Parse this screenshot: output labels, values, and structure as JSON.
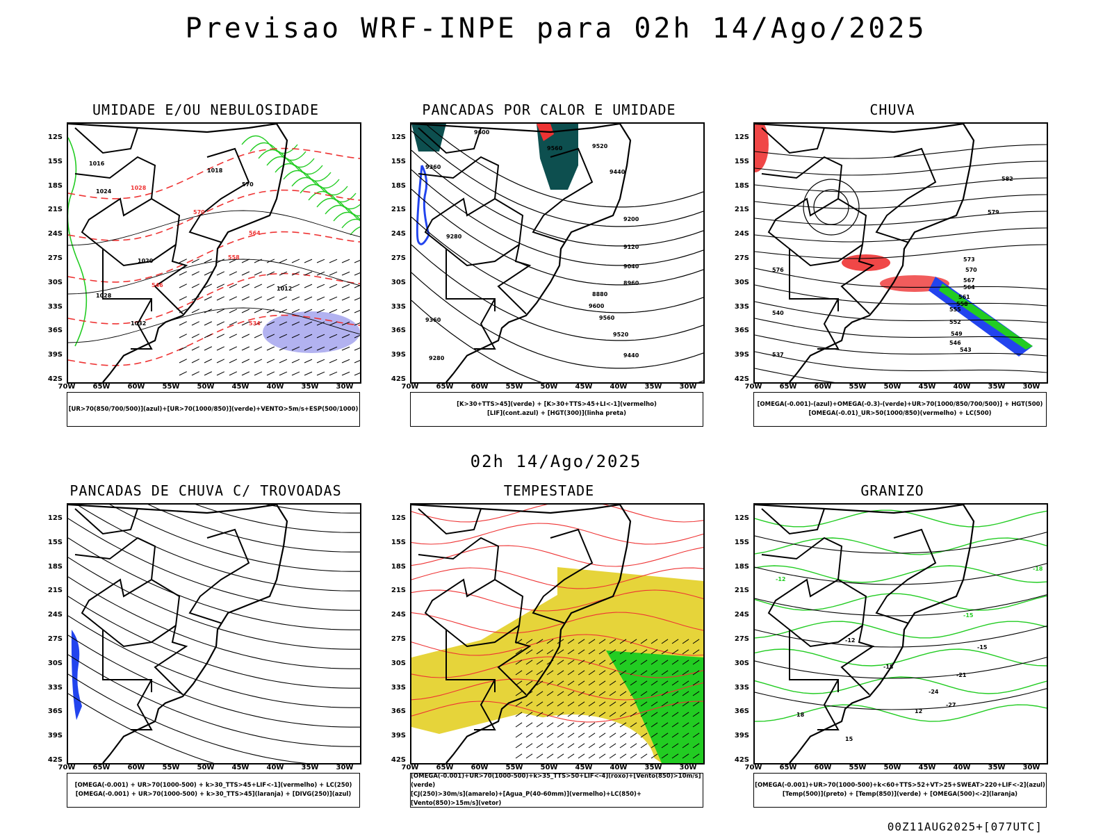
{
  "main_title": "Previsao WRF-INPE  para 02h 14/Ago/2025",
  "mid_title": "02h 14/Ago/2025",
  "footer": "00Z11AUG2025+[077UTC]",
  "lat_labels": [
    "12S",
    "15S",
    "18S",
    "21S",
    "24S",
    "27S",
    "30S",
    "33S",
    "36S",
    "39S",
    "42S"
  ],
  "lon_labels": [
    "70W",
    "65W",
    "60W",
    "55W",
    "50W",
    "45W",
    "40W",
    "35W",
    "30W"
  ],
  "colors": {
    "green": "#22cc22",
    "red": "#ee3333",
    "blue": "#2244ee",
    "lavender": "#aaaaee",
    "teal": "#0d4f4f",
    "yellow": "#e6d43a"
  },
  "panels": [
    {
      "id": "umidade",
      "title": "UMIDADE E/OU NEBULOSIDADE",
      "legend": [
        "[UR>70(850/700/500)](azul)+[UR>70(1000/850)](verde)+VENTO>5m/s+ESP(500/1000)"
      ],
      "labels": [
        "1016",
        "1018",
        "1024",
        "1020",
        "1012",
        "1032",
        "1028",
        "570",
        "564",
        "558",
        "546",
        "534",
        "552",
        "540"
      ]
    },
    {
      "id": "pancadas",
      "title": "PANCADAS POR CALOR E UMIDADE",
      "legend": [
        "[K>30+TTS>45](verde) + [K>30+TTS>45+LI<-1](vermelho)",
        "[LIF](cont.azul) + [HGT(300)](linha preta)"
      ],
      "labels": [
        "9600",
        "9560",
        "9520",
        "9440",
        "9360",
        "9280",
        "9200",
        "9120",
        "9040",
        "8960",
        "8880"
      ]
    },
    {
      "id": "chuva",
      "title": "CHUVA",
      "legend": [
        "[OMEGA(-0.001)-(azul)+OMEGA(-0.3)-(verde)+UR>70(1000/850/700/500)] + HGT(500)",
        "[OMEGA(-0.01)_UR>50(1000/850)(vermelho) + LC(500)"
      ],
      "labels": [
        "582",
        "579",
        "576",
        "573",
        "570",
        "567",
        "564",
        "561",
        "558",
        "555",
        "552",
        "549",
        "546",
        "543",
        "540",
        "537"
      ]
    },
    {
      "id": "trovoadas",
      "title": "PANCADAS DE CHUVA C/ TROVOADAS",
      "legend": [
        "[OMEGA(-0.001) + UR>70(1000-500) + k>30_TTS>45+LIF<-1](vermelho) + LC(250)",
        "[OMEGA(-0.001) + UR>70(1000-500) + k>30_TTS>45](laranja) + [DIVG(250)](azul)"
      ],
      "labels": []
    },
    {
      "id": "tempestade",
      "title": "TEMPESTADE",
      "legend": [
        "[OMEGA(-0.001)+UR>70(1000-500)+k>35_TTS>50+LIF<-4](roxo)+[Vento(850)>10m/s](verde)",
        "[CJ(250)>30m/s](amarelo)+[Agua_P(40-60mm)](vermelho)+LC(850)+[Vento(850)>15m/s](vetor)"
      ],
      "labels": []
    },
    {
      "id": "granizo",
      "title": "GRANIZO",
      "legend": [
        "[OMEGA(-0.001)+UR>70(1000-500)+k<60+TTS>52+VT>25+SWEAT>220+LIF<-2](azul)",
        "[Temp(500)](preto) + [Temp(850)](verde) + [OMEGA(500)<-2](laranja)"
      ],
      "labels": [
        "-12",
        "-15",
        "-18",
        "-21",
        "-24",
        "-27",
        "12",
        "15",
        "18"
      ]
    }
  ]
}
